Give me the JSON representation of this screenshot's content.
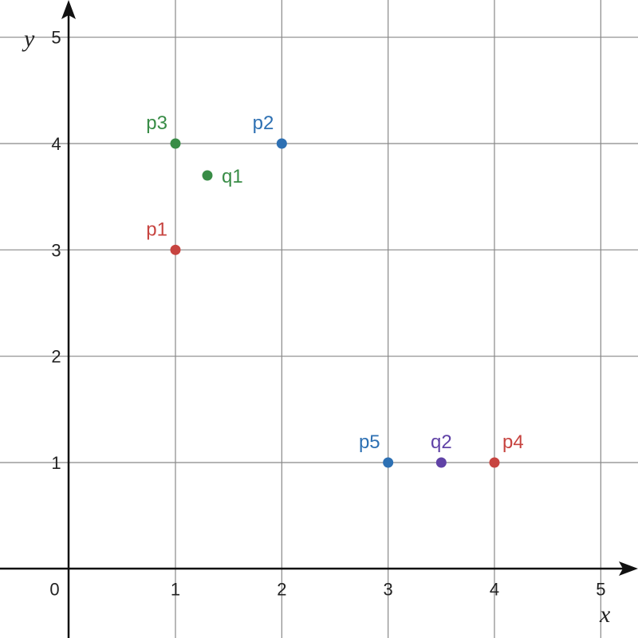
{
  "chart_data": {
    "type": "scatter",
    "xlabel": "x",
    "ylabel": "y",
    "xlim": [
      -0.65,
      5.35
    ],
    "ylim": [
      -0.65,
      5.35
    ],
    "grid": true,
    "x_ticks": [
      "0",
      "1",
      "2",
      "3",
      "4",
      "5"
    ],
    "y_ticks": [
      "1",
      "2",
      "3",
      "4",
      "5"
    ],
    "points": [
      {
        "label": "p1",
        "x": 1,
        "y": 3,
        "color": "#c74440",
        "label_pos": "top-left"
      },
      {
        "label": "p2",
        "x": 2,
        "y": 4,
        "color": "#2d70b3",
        "label_pos": "top-left"
      },
      {
        "label": "p3",
        "x": 1,
        "y": 4,
        "color": "#388c46",
        "label_pos": "top-left"
      },
      {
        "label": "p4",
        "x": 4,
        "y": 1,
        "color": "#c74440",
        "label_pos": "top-right"
      },
      {
        "label": "p5",
        "x": 3,
        "y": 1,
        "color": "#2d70b3",
        "label_pos": "top-left"
      },
      {
        "label": "q1",
        "x": 1.3,
        "y": 3.7,
        "color": "#388c46",
        "label_pos": "right"
      },
      {
        "label": "q2",
        "x": 3.5,
        "y": 1,
        "color": "#6042a6",
        "label_pos": "top"
      }
    ]
  }
}
